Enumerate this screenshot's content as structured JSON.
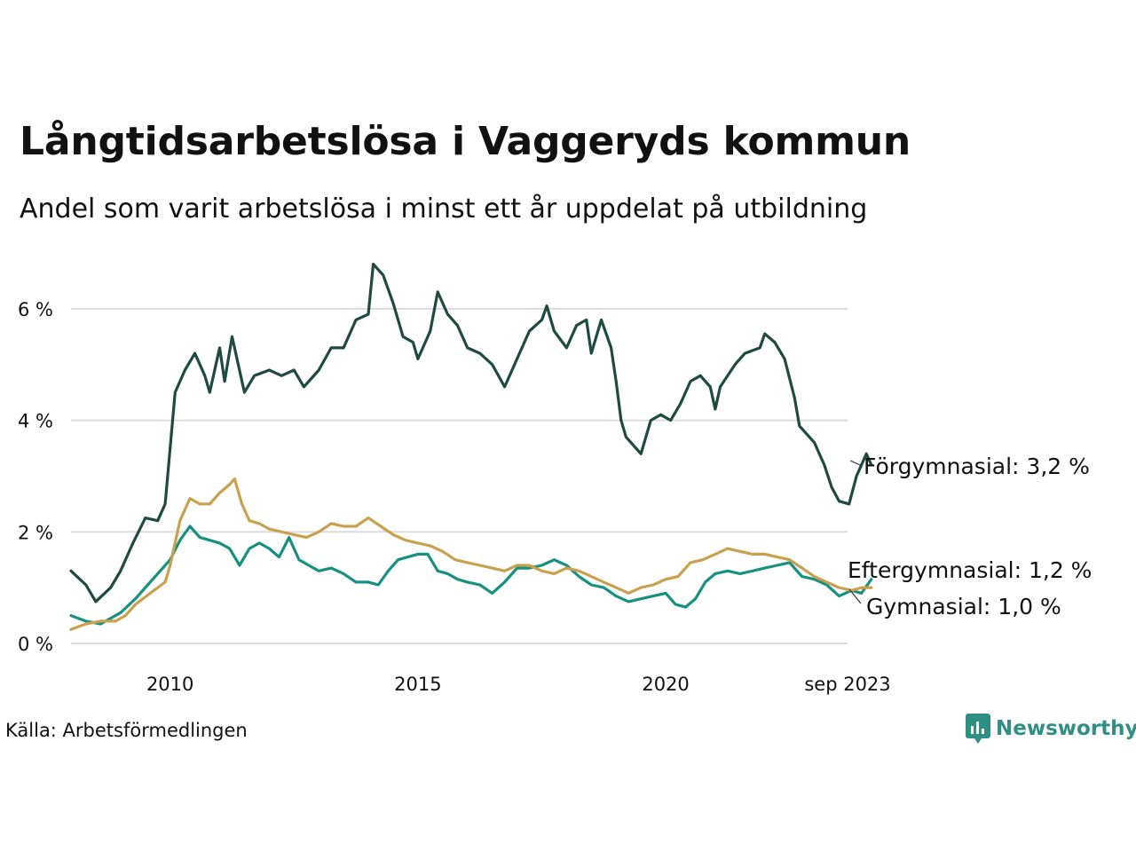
{
  "header": {
    "title": "Långtidsarbetslösa i Vaggeryds kommun",
    "subtitle": "Andel som varit arbetslösa i minst ett år uppdelat på utbildning"
  },
  "footer": {
    "source": "Källa: Arbetsförmedlingen",
    "brand": "Newsworthy"
  },
  "colors": {
    "forgymnasial": "#1f4a40",
    "eftergymnasial": "#17917f",
    "gymnasial": "#c9a04e",
    "grid": "#dcdcdc"
  },
  "chart_data": {
    "type": "line",
    "title": "Långtidsarbetslösa i Vaggeryds kommun",
    "subtitle": "Andel som varit arbetslösa i minst ett år uppdelat på utbildning",
    "xlabel": "",
    "ylabel": "",
    "ylim": [
      0,
      7
    ],
    "xlim": [
      2008.0,
      2023.67
    ],
    "y_ticks": [
      0,
      2,
      4,
      6
    ],
    "y_tick_labels": [
      "0 %",
      "2 %",
      "4 %",
      "6 %"
    ],
    "x_ticks": [
      2010.0,
      2015.0,
      2020.0,
      2023.67
    ],
    "x_tick_labels": [
      "2010",
      "2015",
      "2020",
      "sep 2023"
    ],
    "grid": true,
    "series": [
      {
        "name": "Förgymnasial",
        "end_label": "Förgymnasial: 3,2 %",
        "color_key": "forgymnasial",
        "points": [
          [
            2008.0,
            1.3
          ],
          [
            2008.3,
            1.05
          ],
          [
            2008.5,
            0.75
          ],
          [
            2008.8,
            1.0
          ],
          [
            2009.0,
            1.3
          ],
          [
            2009.25,
            1.8
          ],
          [
            2009.5,
            2.25
          ],
          [
            2009.75,
            2.2
          ],
          [
            2009.9,
            2.5
          ],
          [
            2010.0,
            3.5
          ],
          [
            2010.1,
            4.5
          ],
          [
            2010.3,
            4.9
          ],
          [
            2010.5,
            5.2
          ],
          [
            2010.7,
            4.8
          ],
          [
            2010.8,
            4.5
          ],
          [
            2011.0,
            5.3
          ],
          [
            2011.1,
            4.7
          ],
          [
            2011.25,
            5.5
          ],
          [
            2011.5,
            4.5
          ],
          [
            2011.7,
            4.8
          ],
          [
            2012.0,
            4.9
          ],
          [
            2012.25,
            4.8
          ],
          [
            2012.5,
            4.9
          ],
          [
            2012.7,
            4.6
          ],
          [
            2013.0,
            4.9
          ],
          [
            2013.25,
            5.3
          ],
          [
            2013.5,
            5.3
          ],
          [
            2013.75,
            5.8
          ],
          [
            2014.0,
            5.9
          ],
          [
            2014.1,
            6.8
          ],
          [
            2014.3,
            6.6
          ],
          [
            2014.5,
            6.1
          ],
          [
            2014.7,
            5.5
          ],
          [
            2014.9,
            5.4
          ],
          [
            2015.0,
            5.1
          ],
          [
            2015.25,
            5.6
          ],
          [
            2015.4,
            6.3
          ],
          [
            2015.6,
            5.9
          ],
          [
            2015.8,
            5.7
          ],
          [
            2016.0,
            5.3
          ],
          [
            2016.25,
            5.2
          ],
          [
            2016.5,
            5.0
          ],
          [
            2016.75,
            4.6
          ],
          [
            2017.0,
            5.1
          ],
          [
            2017.25,
            5.6
          ],
          [
            2017.5,
            5.8
          ],
          [
            2017.6,
            6.05
          ],
          [
            2017.75,
            5.6
          ],
          [
            2018.0,
            5.3
          ],
          [
            2018.2,
            5.7
          ],
          [
            2018.4,
            5.8
          ],
          [
            2018.5,
            5.2
          ],
          [
            2018.7,
            5.8
          ],
          [
            2018.9,
            5.3
          ],
          [
            2019.0,
            4.7
          ],
          [
            2019.1,
            4.0
          ],
          [
            2019.2,
            3.7
          ],
          [
            2019.4,
            3.5
          ],
          [
            2019.5,
            3.4
          ],
          [
            2019.7,
            4.0
          ],
          [
            2019.9,
            4.1
          ],
          [
            2020.1,
            4.0
          ],
          [
            2020.3,
            4.3
          ],
          [
            2020.5,
            4.7
          ],
          [
            2020.7,
            4.8
          ],
          [
            2020.9,
            4.6
          ],
          [
            2021.0,
            4.2
          ],
          [
            2021.1,
            4.6
          ],
          [
            2021.4,
            5.0
          ],
          [
            2021.6,
            5.2
          ],
          [
            2021.9,
            5.3
          ],
          [
            2022.0,
            5.55
          ],
          [
            2022.2,
            5.4
          ],
          [
            2022.4,
            5.1
          ],
          [
            2022.6,
            4.4
          ],
          [
            2022.7,
            3.9
          ],
          [
            2022.9,
            3.7
          ],
          [
            2023.0,
            3.6
          ],
          [
            2023.2,
            3.2
          ],
          [
            2023.35,
            2.8
          ],
          [
            2023.5,
            2.55
          ],
          [
            2023.7,
            2.5
          ],
          [
            2023.85,
            3.0
          ],
          [
            2024.05,
            3.4
          ],
          [
            2024.15,
            3.2
          ]
        ]
      },
      {
        "name": "Eftergymnasial",
        "end_label": "Eftergymnasial: 1,2 %",
        "color_key": "eftergymnasial",
        "points": [
          [
            2008.0,
            0.5
          ],
          [
            2008.3,
            0.4
          ],
          [
            2008.6,
            0.35
          ],
          [
            2008.8,
            0.45
          ],
          [
            2009.0,
            0.55
          ],
          [
            2009.3,
            0.8
          ],
          [
            2009.5,
            1.0
          ],
          [
            2009.8,
            1.3
          ],
          [
            2010.0,
            1.5
          ],
          [
            2010.2,
            1.85
          ],
          [
            2010.4,
            2.1
          ],
          [
            2010.6,
            1.9
          ],
          [
            2010.8,
            1.85
          ],
          [
            2011.0,
            1.8
          ],
          [
            2011.2,
            1.7
          ],
          [
            2011.4,
            1.4
          ],
          [
            2011.6,
            1.7
          ],
          [
            2011.8,
            1.8
          ],
          [
            2012.0,
            1.7
          ],
          [
            2012.2,
            1.55
          ],
          [
            2012.4,
            1.9
          ],
          [
            2012.6,
            1.5
          ],
          [
            2012.8,
            1.4
          ],
          [
            2013.0,
            1.3
          ],
          [
            2013.25,
            1.35
          ],
          [
            2013.5,
            1.25
          ],
          [
            2013.75,
            1.1
          ],
          [
            2014.0,
            1.1
          ],
          [
            2014.2,
            1.05
          ],
          [
            2014.4,
            1.3
          ],
          [
            2014.6,
            1.5
          ],
          [
            2014.8,
            1.55
          ],
          [
            2015.0,
            1.6
          ],
          [
            2015.2,
            1.6
          ],
          [
            2015.4,
            1.3
          ],
          [
            2015.6,
            1.25
          ],
          [
            2015.8,
            1.15
          ],
          [
            2016.0,
            1.1
          ],
          [
            2016.25,
            1.05
          ],
          [
            2016.5,
            0.9
          ],
          [
            2016.75,
            1.1
          ],
          [
            2017.0,
            1.35
          ],
          [
            2017.25,
            1.35
          ],
          [
            2017.5,
            1.4
          ],
          [
            2017.75,
            1.5
          ],
          [
            2018.0,
            1.4
          ],
          [
            2018.25,
            1.2
          ],
          [
            2018.5,
            1.05
          ],
          [
            2018.75,
            1.0
          ],
          [
            2019.0,
            0.85
          ],
          [
            2019.25,
            0.75
          ],
          [
            2019.5,
            0.8
          ],
          [
            2019.75,
            0.85
          ],
          [
            2020.0,
            0.9
          ],
          [
            2020.2,
            0.7
          ],
          [
            2020.4,
            0.65
          ],
          [
            2020.6,
            0.8
          ],
          [
            2020.8,
            1.1
          ],
          [
            2021.0,
            1.25
          ],
          [
            2021.25,
            1.3
          ],
          [
            2021.5,
            1.25
          ],
          [
            2021.75,
            1.3
          ],
          [
            2022.0,
            1.35
          ],
          [
            2022.25,
            1.4
          ],
          [
            2022.5,
            1.45
          ],
          [
            2022.75,
            1.2
          ],
          [
            2023.0,
            1.15
          ],
          [
            2023.25,
            1.05
          ],
          [
            2023.5,
            0.85
          ],
          [
            2023.75,
            0.95
          ],
          [
            2023.95,
            0.9
          ],
          [
            2024.15,
            1.15
          ]
        ]
      },
      {
        "name": "Gymnasial",
        "end_label": "Gymnasial: 1,0 %",
        "color_key": "gymnasial",
        "points": [
          [
            2008.0,
            0.25
          ],
          [
            2008.3,
            0.35
          ],
          [
            2008.6,
            0.4
          ],
          [
            2008.9,
            0.4
          ],
          [
            2009.1,
            0.5
          ],
          [
            2009.3,
            0.7
          ],
          [
            2009.6,
            0.9
          ],
          [
            2009.9,
            1.1
          ],
          [
            2010.0,
            1.4
          ],
          [
            2010.2,
            2.2
          ],
          [
            2010.4,
            2.6
          ],
          [
            2010.6,
            2.5
          ],
          [
            2010.8,
            2.5
          ],
          [
            2011.0,
            2.7
          ],
          [
            2011.2,
            2.85
          ],
          [
            2011.3,
            2.95
          ],
          [
            2011.45,
            2.5
          ],
          [
            2011.6,
            2.2
          ],
          [
            2011.8,
            2.15
          ],
          [
            2012.0,
            2.05
          ],
          [
            2012.25,
            2.0
          ],
          [
            2012.5,
            1.95
          ],
          [
            2012.75,
            1.9
          ],
          [
            2013.0,
            2.0
          ],
          [
            2013.25,
            2.15
          ],
          [
            2013.5,
            2.1
          ],
          [
            2013.75,
            2.1
          ],
          [
            2014.0,
            2.25
          ],
          [
            2014.25,
            2.1
          ],
          [
            2014.5,
            1.95
          ],
          [
            2014.75,
            1.85
          ],
          [
            2015.0,
            1.8
          ],
          [
            2015.25,
            1.75
          ],
          [
            2015.5,
            1.65
          ],
          [
            2015.75,
            1.5
          ],
          [
            2016.0,
            1.45
          ],
          [
            2016.25,
            1.4
          ],
          [
            2016.5,
            1.35
          ],
          [
            2016.75,
            1.3
          ],
          [
            2017.0,
            1.4
          ],
          [
            2017.25,
            1.4
          ],
          [
            2017.5,
            1.3
          ],
          [
            2017.75,
            1.25
          ],
          [
            2018.0,
            1.35
          ],
          [
            2018.25,
            1.3
          ],
          [
            2018.5,
            1.2
          ],
          [
            2018.75,
            1.1
          ],
          [
            2019.0,
            1.0
          ],
          [
            2019.25,
            0.9
          ],
          [
            2019.5,
            1.0
          ],
          [
            2019.75,
            1.05
          ],
          [
            2020.0,
            1.15
          ],
          [
            2020.25,
            1.2
          ],
          [
            2020.5,
            1.45
          ],
          [
            2020.75,
            1.5
          ],
          [
            2021.0,
            1.6
          ],
          [
            2021.25,
            1.7
          ],
          [
            2021.5,
            1.65
          ],
          [
            2021.75,
            1.6
          ],
          [
            2022.0,
            1.6
          ],
          [
            2022.25,
            1.55
          ],
          [
            2022.5,
            1.5
          ],
          [
            2022.75,
            1.35
          ],
          [
            2023.0,
            1.2
          ],
          [
            2023.25,
            1.1
          ],
          [
            2023.5,
            1.0
          ],
          [
            2023.75,
            0.95
          ],
          [
            2023.95,
            1.0
          ],
          [
            2024.15,
            1.0
          ]
        ]
      }
    ]
  }
}
